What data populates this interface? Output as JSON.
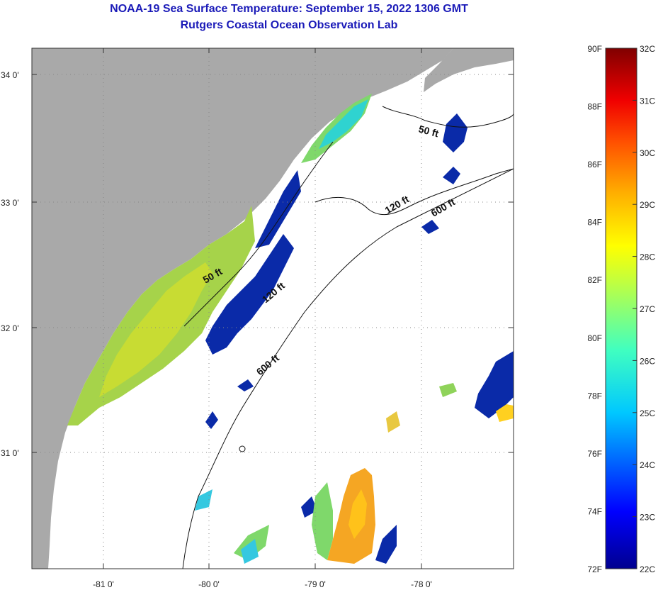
{
  "header": {
    "title": "NOAA-19 Sea Surface Temperature:  September 15, 2022 1306 GMT",
    "subtitle": "Rutgers Coastal Ocean Observation Lab"
  },
  "axes": {
    "lat_labels": [
      "34 0'",
      "33 0'",
      "32 0'",
      "31 0'"
    ],
    "lon_labels": [
      "-81 0'",
      "-80 0'",
      "-79 0'",
      "-78 0'"
    ]
  },
  "contours": [
    "50 ft",
    "120 ft",
    "600 ft",
    "50 ft",
    "120 ft",
    "600 ft"
  ],
  "colorbar": {
    "f_labels": [
      "90F",
      "88F",
      "86F",
      "84F",
      "82F",
      "80F",
      "78F",
      "76F",
      "74F",
      "72F"
    ],
    "c_labels": [
      "32C",
      "31C",
      "30C",
      "29C",
      "28C",
      "27C",
      "26C",
      "25C",
      "24C",
      "23C",
      "22C"
    ]
  },
  "colors": {
    "land": "#a9a9a9",
    "ocean_nodata": "#ffffff",
    "title": "#1a1ab8"
  }
}
